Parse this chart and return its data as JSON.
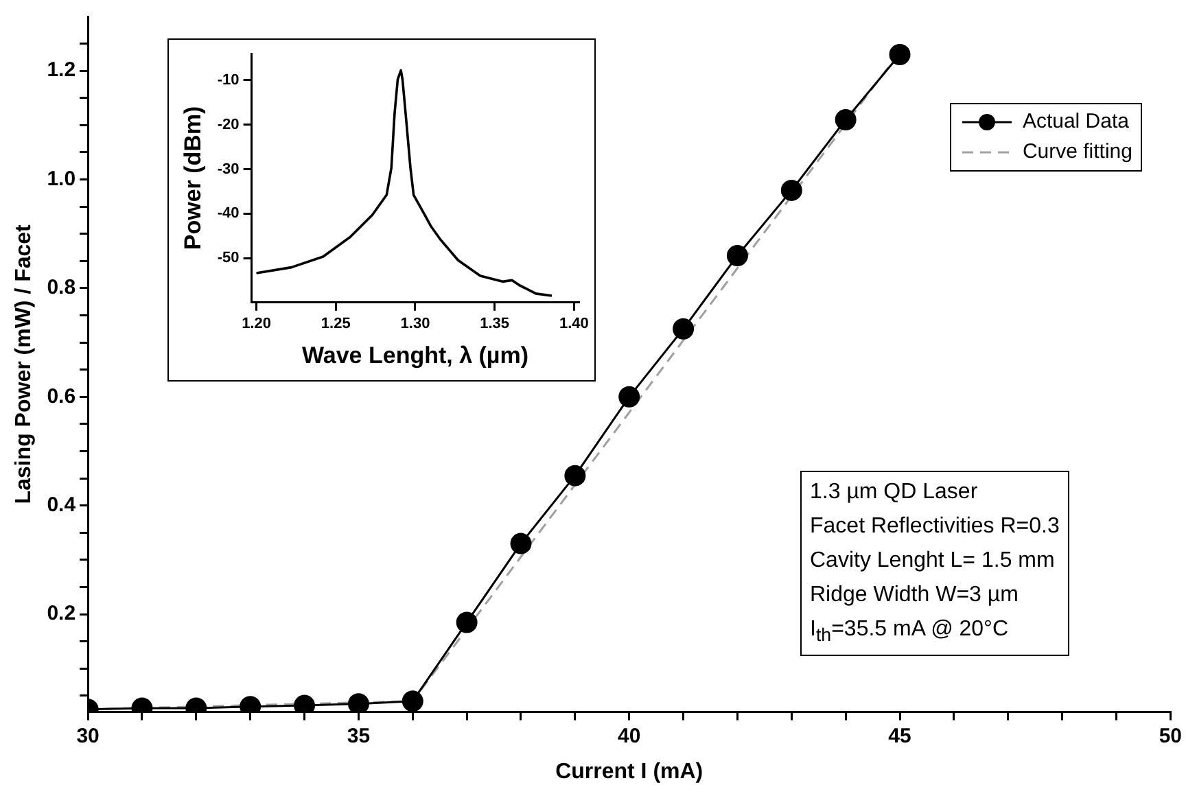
{
  "chart_data": [
    {
      "type": "line",
      "xlabel": "Current I (mA)",
      "ylabel": "Lasing Power (mW) / Facet",
      "xlim": [
        30,
        50
      ],
      "ylim": [
        0.02,
        1.3
      ],
      "xticks": [
        30,
        {
          "value": 31,
          "label": null
        },
        {
          "value": 32,
          "label": null
        },
        {
          "value": 33,
          "label": null
        },
        {
          "value": 34,
          "label": null
        },
        35,
        {
          "value": 36,
          "label": null
        },
        {
          "value": 37,
          "label": null
        },
        {
          "value": 38,
          "label": null
        },
        {
          "value": 39,
          "label": null
        },
        40,
        {
          "value": 41,
          "label": null
        },
        {
          "value": 42,
          "label": null
        },
        {
          "value": 43,
          "label": null
        },
        {
          "value": 44,
          "label": null
        },
        45,
        {
          "value": 46,
          "label": null
        },
        {
          "value": 47,
          "label": null
        },
        {
          "value": 48,
          "label": null
        },
        {
          "value": 49,
          "label": null
        },
        50
      ],
      "yticks": [
        {
          "value": 0.05,
          "label": null
        },
        {
          "value": 0.1,
          "label": null
        },
        {
          "value": 0.15,
          "label": null
        },
        0.2,
        {
          "value": 0.25,
          "label": null
        },
        {
          "value": 0.3,
          "label": null
        },
        {
          "value": 0.35,
          "label": null
        },
        0.4,
        {
          "value": 0.45,
          "label": null
        },
        {
          "value": 0.5,
          "label": null
        },
        {
          "value": 0.55,
          "label": null
        },
        0.6,
        {
          "value": 0.65,
          "label": null
        },
        {
          "value": 0.7,
          "label": null
        },
        {
          "value": 0.75,
          "label": null
        },
        0.8,
        {
          "value": 0.85,
          "label": null
        },
        {
          "value": 0.9,
          "label": null
        },
        {
          "value": 0.95,
          "label": null
        },
        {
          "value": 1.0,
          "label": "1.0"
        },
        {
          "value": 1.05,
          "label": null
        },
        {
          "value": 1.1,
          "label": null
        },
        {
          "value": 1.15,
          "label": null
        },
        1.2,
        {
          "value": 1.25,
          "label": null
        }
      ],
      "grid": false,
      "legend": "top right",
      "series": [
        {
          "name": "Actual Data",
          "color": "#000000",
          "marker": "circle",
          "line_style": "solid",
          "x": [
            30,
            31,
            32,
            33,
            34,
            35,
            36,
            37,
            38,
            39,
            40,
            41,
            42,
            43,
            44,
            45
          ],
          "values": [
            0.025,
            0.027,
            0.027,
            0.03,
            0.032,
            0.035,
            0.04,
            0.185,
            0.33,
            0.455,
            0.6,
            0.725,
            0.86,
            0.98,
            1.11,
            1.23
          ]
        },
        {
          "name": "Curve fitting",
          "color": "#a0a0a0",
          "marker": "none",
          "line_style": "dashed",
          "x": [
            30,
            36,
            45
          ],
          "values": [
            0.025,
            0.04,
            1.235
          ]
        }
      ],
      "annotations": [
        "1.3 µm QD Laser",
        "Facet Reflectivities R=0.3",
        "Cavity Lenght L= 1.5 mm",
        "Ridge Width W=3 µm",
        "I$_{th}$=35.5 mA @ 20°C"
      ]
    },
    {
      "type": "line",
      "xlabel": "Wave Lenght, λ (µm)",
      "ylabel": "Power (dBm)",
      "xlim": [
        1.197,
        1.403
      ],
      "ylim": [
        -60,
        -4
      ],
      "xticks": [
        {
          "value": 1.2,
          "label": "1.20"
        },
        {
          "value": 1.25,
          "label": "1.25"
        },
        {
          "value": 1.3,
          "label": "1.30"
        },
        {
          "value": 1.35,
          "label": "1.35"
        },
        {
          "value": 1.4,
          "label": "1.40"
        }
      ],
      "yticks": [
        -50,
        -40,
        -30,
        -20,
        -10
      ],
      "grid": false,
      "series": [
        {
          "color": "#000000",
          "marker": "none",
          "line_style": "solid",
          "x": [
            1.2,
            1.222,
            1.242,
            1.259,
            1.273,
            1.282,
            1.285,
            1.287,
            1.289,
            1.291,
            1.292,
            1.294,
            1.297,
            1.299,
            1.306,
            1.31,
            1.316,
            1.327,
            1.341,
            1.355,
            1.361,
            1.366,
            1.376,
            1.386
          ],
          "values": [
            -53.4,
            -52.1,
            -49.7,
            -45.3,
            -40.3,
            -35.8,
            -29.7,
            -17.6,
            -9.8,
            -7.8,
            -9.8,
            -17.6,
            -29.7,
            -35.8,
            -40.3,
            -42.9,
            -45.9,
            -50.5,
            -54.0,
            -55.3,
            -55.0,
            -56.2,
            -58.0,
            -58.5
          ]
        }
      ]
    }
  ]
}
